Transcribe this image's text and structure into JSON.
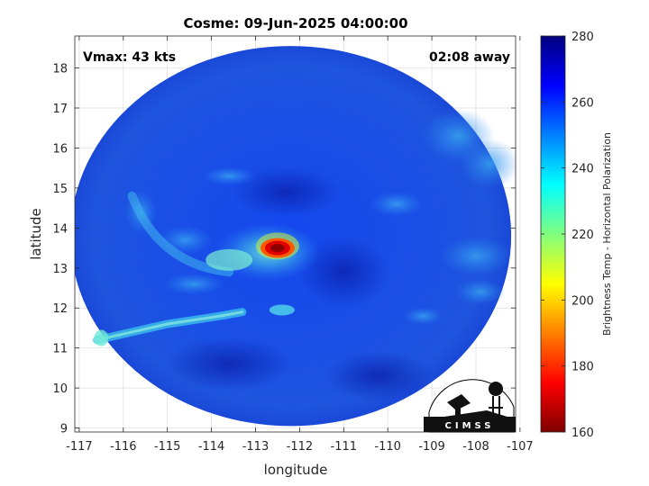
{
  "title": "Cosme: 09-Jun-2025 04:00:00",
  "vmax_label": "Vmax: 43 kts",
  "away_label": "02:08 away",
  "xlabel": "longitude",
  "ylabel": "latitude",
  "x_ticks": [
    -117,
    -116,
    -115,
    -114,
    -113,
    -112,
    -111,
    -110,
    -109,
    -108,
    -107
  ],
  "y_ticks": [
    9,
    10,
    11,
    12,
    13,
    14,
    15,
    16,
    17,
    18
  ],
  "xlim": [
    -117.1,
    -107.1
  ],
  "ylim": [
    8.9,
    18.8
  ],
  "colorbar": {
    "label": "Brightness Temp - Horizontal Polarization",
    "min": 160,
    "max": 280,
    "ticks": [
      160,
      180,
      200,
      220,
      240,
      260,
      280
    ],
    "colormap": "jet"
  },
  "logo_text": "CIMSS",
  "swath": {
    "center_lon": -112.2,
    "center_lat": 13.8,
    "radius_deg": 5.0
  },
  "features": [
    {
      "kind": "core",
      "lon": -112.5,
      "lat": 13.5,
      "value": 168
    },
    {
      "kind": "ring",
      "lon": -112.7,
      "lat": 13.4,
      "value": 225
    },
    {
      "kind": "band",
      "from": [
        -116.6,
        11.2
      ],
      "to": [
        -113.0,
        12.0
      ],
      "value": 228
    }
  ]
}
